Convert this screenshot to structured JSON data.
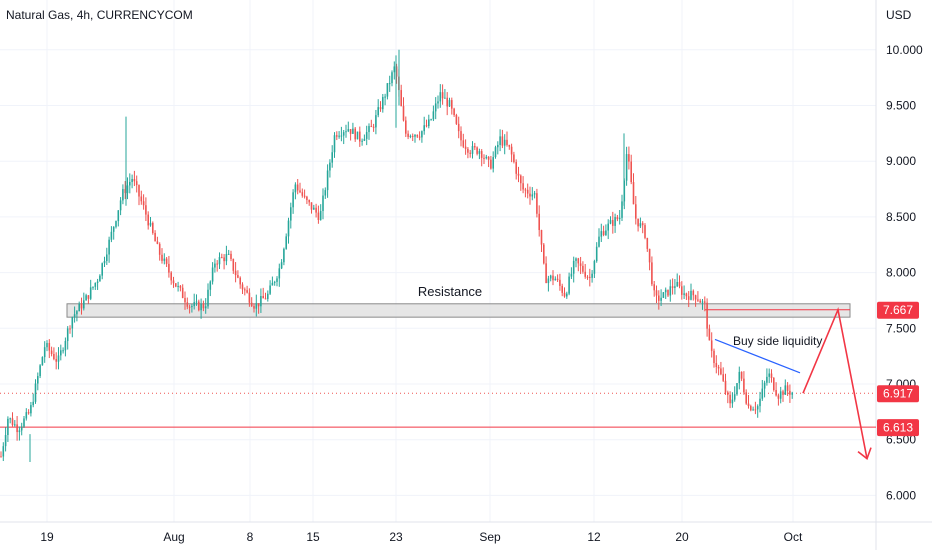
{
  "title": "Natural Gas, 4h, CURRENCYCOM",
  "currency": "USD",
  "colors": {
    "up": "#26a69a",
    "down": "#ef5350",
    "grid": "#f0f3fa",
    "axis_text": "#131722",
    "level": "#f23645",
    "trendline": "#2962ff",
    "resistance_fill": "#e0e0e0",
    "resistance_border": "#8a8a8a",
    "current_line": "#ef5350"
  },
  "chart_data": {
    "type": "candlestick",
    "y_ticks": [
      "6.000",
      "6.500",
      "7.000",
      "7.500",
      "8.000",
      "8.500",
      "9.000",
      "9.500",
      "10.000"
    ],
    "ylim": [
      5.6,
      10.3
    ],
    "x_ticks": [
      "19",
      "Aug",
      "8",
      "15",
      "23",
      "Sep",
      "12",
      "20",
      "Oct"
    ],
    "path": [
      [
        0,
        6.3
      ],
      [
        8,
        6.7
      ],
      [
        18,
        6.6
      ],
      [
        30,
        6.75
      ],
      [
        45,
        7.35
      ],
      [
        58,
        7.2
      ],
      [
        72,
        7.6
      ],
      [
        85,
        7.75
      ],
      [
        98,
        7.95
      ],
      [
        110,
        8.3
      ],
      [
        122,
        8.7
      ],
      [
        132,
        8.85
      ],
      [
        145,
        8.55
      ],
      [
        158,
        8.2
      ],
      [
        175,
        7.9
      ],
      [
        190,
        7.7
      ],
      [
        205,
        7.7
      ],
      [
        215,
        8.1
      ],
      [
        228,
        8.15
      ],
      [
        240,
        7.9
      ],
      [
        255,
        7.7
      ],
      [
        268,
        7.8
      ],
      [
        280,
        8.05
      ],
      [
        295,
        8.8
      ],
      [
        305,
        8.65
      ],
      [
        320,
        8.5
      ],
      [
        335,
        9.25
      ],
      [
        348,
        9.3
      ],
      [
        360,
        9.2
      ],
      [
        372,
        9.3
      ],
      [
        385,
        9.6
      ],
      [
        395,
        9.85
      ],
      [
        405,
        9.25
      ],
      [
        420,
        9.25
      ],
      [
        430,
        9.35
      ],
      [
        440,
        9.6
      ],
      [
        450,
        9.5
      ],
      [
        460,
        9.2
      ],
      [
        470,
        9.1
      ],
      [
        480,
        9.1
      ],
      [
        490,
        8.95
      ],
      [
        500,
        9.2
      ],
      [
        510,
        9.1
      ],
      [
        522,
        8.75
      ],
      [
        535,
        8.7
      ],
      [
        545,
        7.95
      ],
      [
        555,
        7.95
      ],
      [
        565,
        7.8
      ],
      [
        575,
        8.1
      ],
      [
        590,
        7.95
      ],
      [
        600,
        8.35
      ],
      [
        612,
        8.45
      ],
      [
        620,
        8.5
      ],
      [
        627,
        9.1
      ],
      [
        635,
        8.5
      ],
      [
        645,
        8.35
      ],
      [
        655,
        7.75
      ],
      [
        665,
        7.8
      ],
      [
        675,
        7.9
      ],
      [
        685,
        7.8
      ],
      [
        695,
        7.8
      ],
      [
        705,
        7.7
      ],
      [
        710,
        7.3
      ],
      [
        720,
        7.1
      ],
      [
        730,
        6.8
      ],
      [
        740,
        7.1
      ],
      [
        748,
        6.8
      ],
      [
        758,
        6.8
      ],
      [
        768,
        7.1
      ],
      [
        778,
        6.9
      ],
      [
        785,
        6.95
      ],
      [
        793,
        6.92
      ]
    ],
    "levels": [
      {
        "label": "7.667",
        "value": 7.667
      },
      {
        "label": "6.917",
        "value": 6.917
      },
      {
        "label": "6.613",
        "value": 6.613
      }
    ],
    "resistance_zone": {
      "label": "Resistance",
      "from": 7.6,
      "to": 7.72
    },
    "buy_side_liquidity": {
      "label": "Buy side liquidity",
      "from": [
        715,
        7.4
      ],
      "to": [
        800,
        7.1
      ]
    },
    "projection": [
      [
        803,
        6.917
      ],
      [
        838,
        7.667
      ],
      [
        867,
        6.33
      ]
    ]
  }
}
